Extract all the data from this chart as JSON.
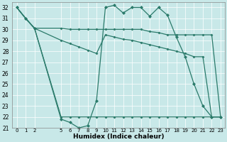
{
  "xlabel": "Humidex (Indice chaleur)",
  "bg_color": "#c8e8e8",
  "grid_color": "#ffffff",
  "line_color": "#2a7a6a",
  "ylim": [
    21,
    32.5
  ],
  "xlim": [
    -0.5,
    23.5
  ],
  "yticks": [
    21,
    22,
    23,
    24,
    25,
    26,
    27,
    28,
    29,
    30,
    31,
    32
  ],
  "xticks": [
    0,
    1,
    2,
    5,
    6,
    7,
    8,
    9,
    10,
    11,
    12,
    13,
    14,
    15,
    16,
    17,
    18,
    19,
    20,
    21,
    22,
    23
  ],
  "lines": [
    {
      "x": [
        0,
        1,
        2,
        5,
        6,
        7,
        8,
        9,
        10,
        11,
        12,
        13,
        14,
        15,
        16,
        17,
        18,
        19,
        20,
        21,
        22,
        23
      ],
      "y": [
        32,
        31,
        30.1,
        21.8,
        21.5,
        21.0,
        21.2,
        23.5,
        32.0,
        32.2,
        31.5,
        32.0,
        32.0,
        31.2,
        32.0,
        31.3,
        29.3,
        27.5,
        25.0,
        23.0,
        22.0,
        22.0
      ],
      "markers": true
    },
    {
      "x": [
        0,
        1,
        2,
        5,
        6,
        7,
        8,
        9,
        10,
        11,
        12,
        13,
        14,
        15,
        16,
        17,
        18,
        19,
        20,
        21,
        22,
        23
      ],
      "y": [
        32,
        31,
        30.1,
        30.1,
        30.0,
        30.0,
        30.0,
        30.0,
        30.0,
        30.0,
        30.0,
        30.0,
        30.0,
        29.8,
        29.7,
        29.5,
        29.5,
        29.5,
        29.5,
        29.5,
        29.5,
        22.0
      ],
      "markers": false
    },
    {
      "x": [
        0,
        1,
        2,
        5,
        6,
        7,
        8,
        9,
        10,
        11,
        12,
        13,
        14,
        15,
        16,
        17,
        18,
        19,
        20,
        21,
        22,
        23
      ],
      "y": [
        32,
        31,
        30.1,
        29.0,
        28.7,
        28.4,
        28.1,
        27.8,
        29.5,
        29.3,
        29.1,
        29.0,
        28.8,
        28.6,
        28.4,
        28.2,
        28.0,
        27.8,
        27.5,
        27.5,
        22.0,
        22.0
      ],
      "markers": false
    },
    {
      "x": [
        0,
        1,
        2,
        5,
        6,
        7,
        8,
        9,
        10,
        11,
        12,
        13,
        14,
        15,
        16,
        17,
        18,
        19,
        20,
        21,
        22,
        23
      ],
      "y": [
        32,
        31,
        30.1,
        22.0,
        22.0,
        22.0,
        22.0,
        22.0,
        22.0,
        22.0,
        22.0,
        22.0,
        22.0,
        22.0,
        22.0,
        22.0,
        22.0,
        22.0,
        22.0,
        22.0,
        22.0,
        22.0
      ],
      "markers": false
    }
  ]
}
